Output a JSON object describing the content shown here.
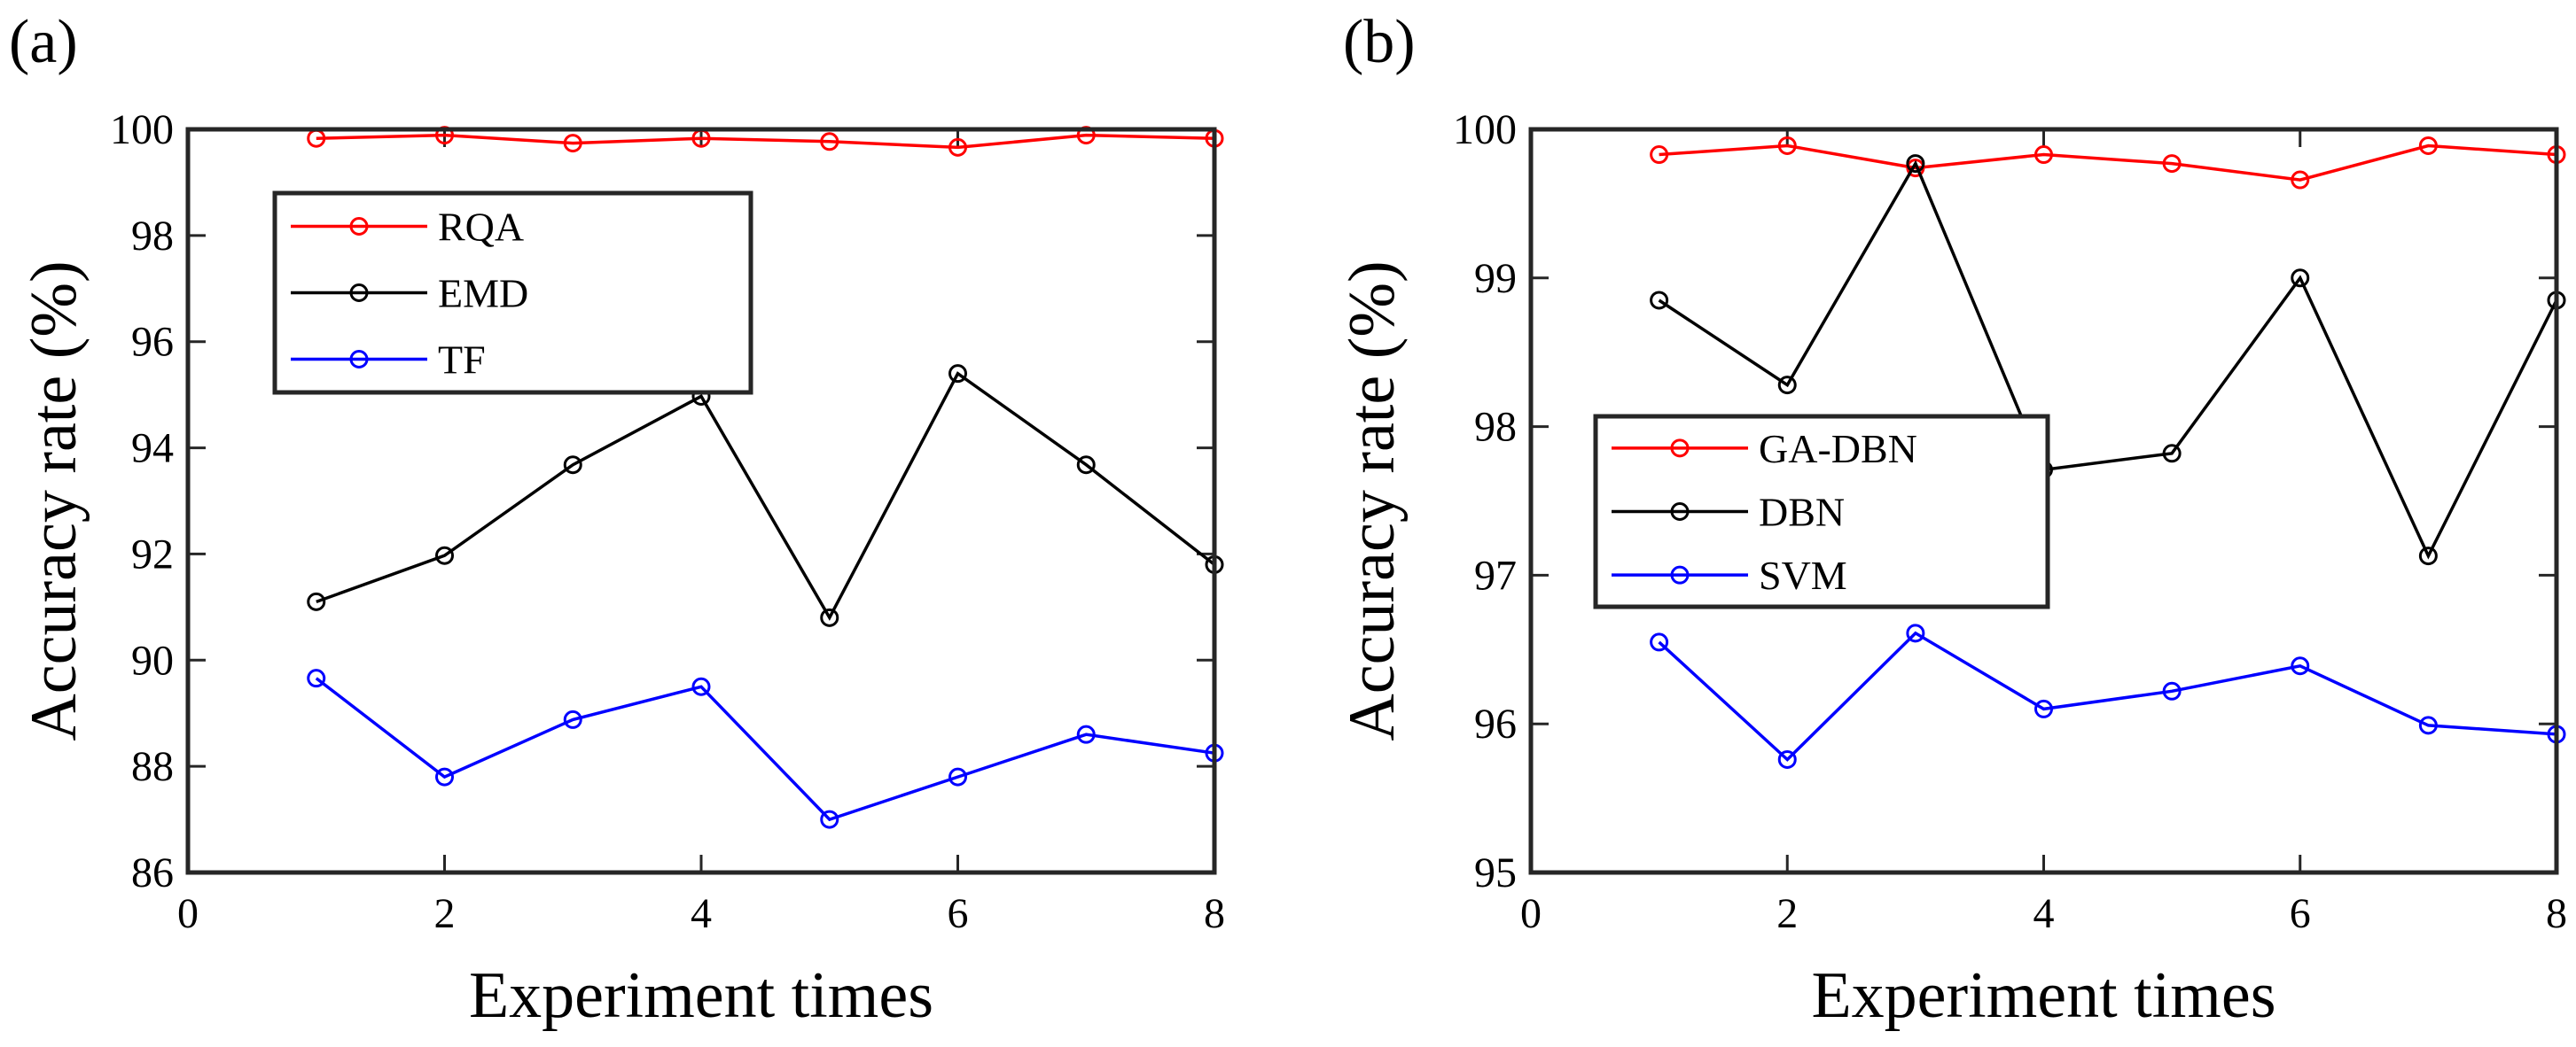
{
  "chart_data": [
    {
      "panel": "(a)",
      "type": "line",
      "xlabel": "Experiment times",
      "ylabel": "Accuracy rate (%)",
      "xlim": [
        0,
        8
      ],
      "ylim": [
        86,
        100
      ],
      "xticks": [
        0,
        2,
        4,
        6,
        8
      ],
      "yticks": [
        86,
        88,
        90,
        92,
        94,
        96,
        98,
        100
      ],
      "grid": false,
      "legend_position": "upper-left",
      "x": [
        1,
        2,
        3,
        4,
        5,
        6,
        7,
        8
      ],
      "series": [
        {
          "name": "RQA",
          "color": "#ff0000",
          "values": [
            99.83,
            99.89,
            99.74,
            99.83,
            99.77,
            99.66,
            99.89,
            99.83
          ]
        },
        {
          "name": "EMD",
          "color": "#000000",
          "values": [
            91.1,
            91.97,
            93.68,
            94.97,
            90.8,
            95.4,
            93.68,
            91.8
          ]
        },
        {
          "name": "TF",
          "color": "#0000ff",
          "values": [
            89.66,
            87.8,
            88.88,
            89.5,
            87.0,
            87.8,
            88.6,
            88.25
          ]
        }
      ]
    },
    {
      "panel": "(b)",
      "type": "line",
      "xlabel": "Experiment times",
      "ylabel": "Accuracy rate (%)",
      "xlim": [
        0,
        8
      ],
      "ylim": [
        95,
        100
      ],
      "xticks": [
        0,
        2,
        4,
        6,
        8
      ],
      "yticks": [
        95,
        96,
        97,
        98,
        99,
        100
      ],
      "grid": false,
      "legend_position": "middle-left",
      "x": [
        1,
        2,
        3,
        4,
        5,
        6,
        7,
        8
      ],
      "series": [
        {
          "name": "GA-DBN",
          "color": "#ff0000",
          "values": [
            99.83,
            99.89,
            99.74,
            99.83,
            99.77,
            99.66,
            99.89,
            99.83
          ]
        },
        {
          "name": "DBN",
          "color": "#000000",
          "values": [
            98.85,
            98.28,
            99.77,
            97.71,
            97.82,
            99.0,
            97.13,
            98.85
          ]
        },
        {
          "name": "SVM",
          "color": "#0000ff",
          "values": [
            96.55,
            95.76,
            96.61,
            96.1,
            96.22,
            96.39,
            95.99,
            95.93
          ]
        }
      ]
    }
  ]
}
